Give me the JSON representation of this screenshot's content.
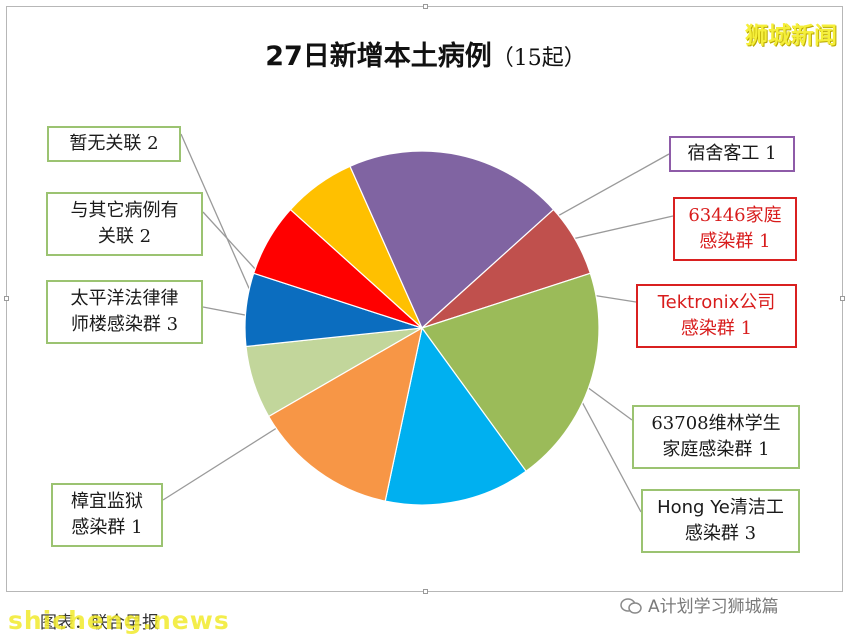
{
  "header": {
    "watermark": "狮城新闻"
  },
  "chart_data": {
    "type": "pie",
    "title": "27日新增本土病例",
    "subtitle": "（15起）",
    "total": 15,
    "slices": [
      {
        "label_lines": [
          "宿舍客工 1"
        ],
        "value": 1,
        "color": "#c2d69b",
        "border": "purple"
      },
      {
        "label_lines": [
          "63446家庭",
          "感染群 1"
        ],
        "value": 1,
        "color": "#0b6dbf",
        "border": "red"
      },
      {
        "label_lines": [
          "Tektronix公司",
          "感染群 1"
        ],
        "value": 1,
        "color": "#ff0000",
        "border": "red"
      },
      {
        "label_lines": [
          "63708维林学生",
          "家庭感染群 1"
        ],
        "value": 1,
        "color": "#ffc000",
        "border": "green"
      },
      {
        "label_lines": [
          "Hong Ye清洁工",
          "感染群 3"
        ],
        "value": 3,
        "color": "#8064a2",
        "border": "green"
      },
      {
        "label_lines": [
          "樟宜监狱",
          "感染群 1"
        ],
        "value": 1,
        "color": "#c0504d",
        "border": "green"
      },
      {
        "label_lines": [
          "太平洋法律律",
          "师楼感染群 3"
        ],
        "value": 3,
        "color": "#9bbb59",
        "border": "green"
      },
      {
        "label_lines": [
          "与其它病例有",
          "关联 2"
        ],
        "value": 2,
        "color": "#00b0f0",
        "border": "green"
      },
      {
        "label_lines": [
          "暂无关联 2"
        ],
        "value": 2,
        "color": "#f79646",
        "border": "green"
      }
    ]
  },
  "footer": {
    "caption": "图表：联合早报",
    "watermark_left": "shicheng.news",
    "watermark_right": "A计划学习狮城篇"
  }
}
